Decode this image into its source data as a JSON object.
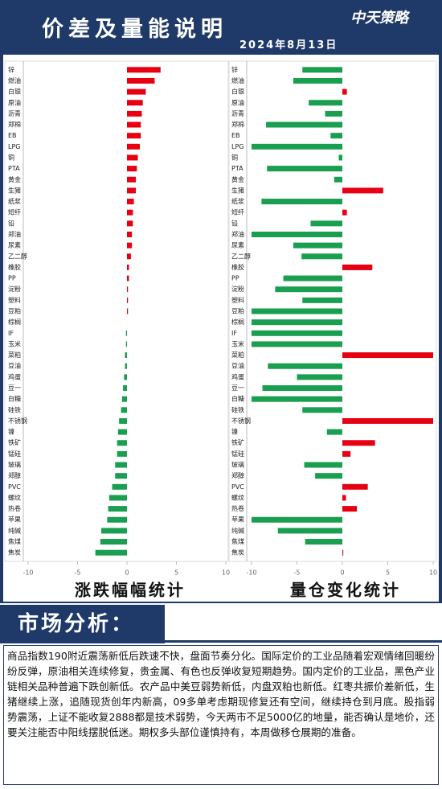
{
  "header": {
    "title": "价差及量能说明",
    "date": "2024年8月13日",
    "logo": "中天策略"
  },
  "chart_data": [
    {
      "type": "bar",
      "orientation": "horizontal",
      "title": "涨跌幅幅统计",
      "categories": [
        "锌",
        "燃油",
        "白银",
        "原油",
        "沥青",
        "郑棉",
        "EB",
        "LPG",
        "铜",
        "PTA",
        "黄金",
        "生猪",
        "纸浆",
        "短纤",
        "铅",
        "郑油",
        "尿素",
        "乙二醇",
        "橡胶",
        "PP",
        "淀粉",
        "塑料",
        "豆粕",
        "棕榈",
        "IF",
        "玉米",
        "菜粕",
        "豆油",
        "鸡蛋",
        "豆一",
        "白糖",
        "硅铁",
        "不锈钢",
        "镍",
        "铁矿",
        "锰硅",
        "玻璃",
        "郑醇",
        "PVC",
        "螺纹",
        "热卷",
        "苹果",
        "纯碱",
        "焦煤",
        "焦炭"
      ],
      "values": [
        3.4,
        2.8,
        1.9,
        1.6,
        1.5,
        1.4,
        1.4,
        1.3,
        1.1,
        1.0,
        0.9,
        0.9,
        0.7,
        0.6,
        0.6,
        0.5,
        0.5,
        0.4,
        0.2,
        0.2,
        0.1,
        0.1,
        0.1,
        0,
        -0.1,
        -0.1,
        -0.2,
        -0.2,
        -0.3,
        -0.4,
        -0.5,
        -0.6,
        -0.8,
        -0.9,
        -1.0,
        -1.0,
        -1.2,
        -1.2,
        -1.5,
        -1.8,
        -1.9,
        -2.0,
        -2.6,
        -2.7,
        -3.2
      ],
      "positive_color": "#e60012",
      "negative_color": "#1a9e50",
      "xlim": [
        -10,
        10
      ],
      "xticks": [
        -10,
        -5,
        0,
        5,
        10
      ]
    },
    {
      "type": "bar",
      "orientation": "horizontal",
      "title": "量仓变化统计",
      "categories": [
        "锌",
        "燃油",
        "白银",
        "原油",
        "沥青",
        "郑棉",
        "EB",
        "LPG",
        "铜",
        "PTA",
        "黄金",
        "生猪",
        "纸浆",
        "短纤",
        "铅",
        "郑油",
        "尿素",
        "乙二醇",
        "橡胶",
        "PP",
        "淀粉",
        "塑料",
        "豆粕",
        "棕榈",
        "IF",
        "玉米",
        "菜粕",
        "豆油",
        "鸡蛋",
        "豆一",
        "白糖",
        "硅铁",
        "不锈钢",
        "镍",
        "铁矿",
        "锰硅",
        "玻璃",
        "郑醇",
        "PVC",
        "螺纹",
        "热卷",
        "苹果",
        "纯碱",
        "焦煤",
        "焦炭"
      ],
      "values": [
        -4.4,
        -5.4,
        0.5,
        -3.7,
        -1.9,
        -8.4,
        -1.3,
        -10,
        -0.4,
        -8.3,
        -0.9,
        4.5,
        -8.9,
        0.5,
        -3.5,
        -10,
        -5.4,
        -4.5,
        3.3,
        -6.5,
        -7.4,
        -4.4,
        -10,
        -10,
        -10,
        -10,
        10,
        -8.2,
        -5,
        -8.8,
        -10,
        -4.4,
        10,
        -1.7,
        3.6,
        0.9,
        -4.2,
        -3.0,
        2.8,
        0.4,
        1.6,
        -10,
        -7.1,
        -4.1,
        0.1
      ],
      "positive_color": "#e60012",
      "negative_color": "#1a9e50",
      "xlim": [
        -10,
        10
      ],
      "xticks": [
        -10,
        -5,
        0,
        5,
        10
      ]
    }
  ],
  "analysis": {
    "title": "市场分析：",
    "text": "商品指数190附近震荡新低后跌速不快，盘面节奏分化。国际定价的工业品随着宏观情绪回暖纷纷反弹，原油相关连续修复，贵金属、有色也反弹收复短期趋势。国内定价的工业品，黑色产业链相关品种普遍下跌创新低。农产品中美豆弱势新低，内盘双粕也新低。红枣共振价差新低，生猪继续上涨，追随现货创年内新高，09多单考虑期现修复还有空间，继续持仓到月底。股指弱势震荡，上证不能收复2888都是技术弱势，今天两市不足5000亿的地量，能否确认是地价，还要关注能否中阳线摆脱低迷。期权多头部位谨慎持有，本周做移仓展期的准备。"
  }
}
